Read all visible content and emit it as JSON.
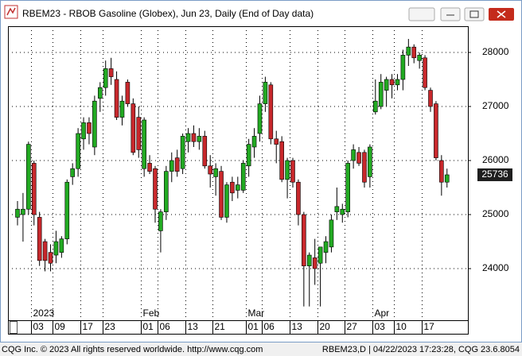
{
  "chart_data": {
    "type": "candlestick",
    "title": "RBEM23 - RBOB Gasoline (Globex), Jun 23, Daily (End of Day data)",
    "categories": [
      null,
      null,
      null,
      "03",
      null,
      null,
      null,
      "09",
      null,
      null,
      null,
      null,
      "17",
      null,
      null,
      null,
      "23",
      null,
      null,
      null,
      null,
      null,
      null,
      "01",
      null,
      null,
      "06",
      null,
      null,
      null,
      null,
      "13",
      null,
      null,
      null,
      null,
      "21",
      null,
      null,
      null,
      null,
      null,
      "01",
      null,
      null,
      "06",
      null,
      null,
      null,
      null,
      "13",
      null,
      null,
      null,
      null,
      "20",
      null,
      null,
      null,
      null,
      "27",
      null,
      null,
      null,
      null,
      "03",
      null,
      null,
      null,
      "10",
      null,
      null,
      null,
      null,
      "17",
      null,
      null,
      null,
      null
    ],
    "months": [
      null,
      null,
      null,
      "2023",
      null,
      null,
      null,
      null,
      null,
      null,
      null,
      null,
      null,
      null,
      null,
      null,
      null,
      null,
      null,
      null,
      null,
      null,
      null,
      "Feb",
      null,
      null,
      null,
      null,
      null,
      null,
      null,
      null,
      null,
      null,
      null,
      null,
      null,
      null,
      null,
      null,
      null,
      null,
      "Mar",
      null,
      null,
      null,
      null,
      null,
      null,
      null,
      null,
      null,
      null,
      null,
      null,
      null,
      null,
      null,
      null,
      null,
      null,
      null,
      null,
      null,
      null,
      "Apr",
      null,
      null,
      null,
      null,
      null,
      null,
      null,
      null,
      null,
      null,
      null,
      null,
      null
    ],
    "open": [
      24950,
      25000,
      25100,
      25950,
      24950,
      24500,
      24300,
      24250,
      24300,
      24550,
      25700,
      25850,
      26400,
      26700,
      26250,
      27150,
      27350,
      27700,
      27500,
      26800,
      27450,
      27050,
      26800,
      25850,
      25950,
      25850,
      24700,
      25050,
      25800,
      26050,
      25850,
      26350,
      26500,
      26350,
      26450,
      25900,
      25700,
      25800,
      24950,
      25600,
      25450,
      25450,
      25900,
      26250,
      26500,
      27050,
      27400,
      26400,
      26350,
      25650,
      26000,
      25600,
      25000,
      24050,
      24200,
      24100,
      24300,
      24400,
      25050,
      25000,
      25050,
      26000,
      26150,
      26150,
      25700,
      26900,
      27000,
      27300,
      27500,
      27400,
      27500,
      27950,
      28100,
      27850,
      27900,
      27300,
      27050,
      26000,
      25600
    ],
    "high": [
      25250,
      25400,
      26350,
      26000,
      25050,
      24550,
      24450,
      24700,
      24600,
      25650,
      25950,
      26600,
      26800,
      26800,
      27200,
      27450,
      27850,
      27900,
      27650,
      27200,
      27500,
      27150,
      27000,
      26800,
      26100,
      25900,
      25100,
      25900,
      26150,
      26200,
      26500,
      26600,
      26650,
      26600,
      26550,
      26100,
      25950,
      25900,
      25600,
      25700,
      25700,
      26000,
      26400,
      26600,
      27200,
      27550,
      27450,
      26550,
      26450,
      26050,
      26050,
      25650,
      25050,
      24300,
      24550,
      24400,
      24600,
      25000,
      25500,
      25200,
      26000,
      26300,
      26250,
      26200,
      26300,
      27500,
      27600,
      27550,
      27600,
      27600,
      28050,
      28250,
      28150,
      28000,
      27950,
      27350,
      27100,
      26100,
      25850
    ],
    "low": [
      24800,
      24500,
      25000,
      24800,
      24050,
      23950,
      23950,
      24100,
      24200,
      24450,
      25550,
      25700,
      26200,
      26300,
      26100,
      26900,
      27200,
      27400,
      26750,
      26650,
      27000,
      26100,
      26050,
      25700,
      25750,
      24850,
      24300,
      24900,
      25600,
      25700,
      25750,
      26150,
      26250,
      26200,
      25850,
      25500,
      25350,
      24900,
      24850,
      25250,
      25300,
      25400,
      25700,
      26050,
      26350,
      26900,
      26300,
      25950,
      25600,
      25300,
      25500,
      24800,
      23300,
      23300,
      23700,
      23300,
      24100,
      24300,
      24900,
      24850,
      24950,
      25850,
      25900,
      25500,
      25500,
      26850,
      26950,
      27000,
      27150,
      27300,
      27300,
      27750,
      27800,
      27700,
      27300,
      26900,
      26000,
      25350,
      25500
    ],
    "close": [
      25100,
      25100,
      26300,
      25000,
      24150,
      24150,
      24100,
      24500,
      24550,
      25600,
      25850,
      26500,
      26700,
      26500,
      27100,
      27350,
      27700,
      27550,
      26800,
      27100,
      27050,
      26150,
      26200,
      26750,
      25800,
      25100,
      25050,
      25800,
      26000,
      25800,
      26450,
      26500,
      26350,
      26450,
      25900,
      25750,
      25850,
      24950,
      25550,
      25400,
      25550,
      25950,
      26300,
      26450,
      27050,
      27450,
      26400,
      26300,
      25650,
      26000,
      25600,
      25000,
      24050,
      24250,
      24000,
      24400,
      24500,
      24900,
      25150,
      25100,
      25950,
      26200,
      25950,
      25600,
      26250,
      27100,
      27450,
      27500,
      27400,
      27500,
      27950,
      28100,
      27900,
      27950,
      27350,
      27000,
      26050,
      25600,
      25736
    ],
    "up_color": "#22aa22",
    "down_color": "#c8282c",
    "ylim": [
      23045,
      28485
    ],
    "yticks": [
      24000,
      25000,
      26000,
      27000,
      28000
    ],
    "grid": true
  },
  "footer": {
    "left": "CQG Inc. © 2023 All rights reserved worldwide. http://www.cqg.com",
    "right": "RBEM23,D | 04/22/2023 17:23:28, CQG 23.6.8054"
  }
}
